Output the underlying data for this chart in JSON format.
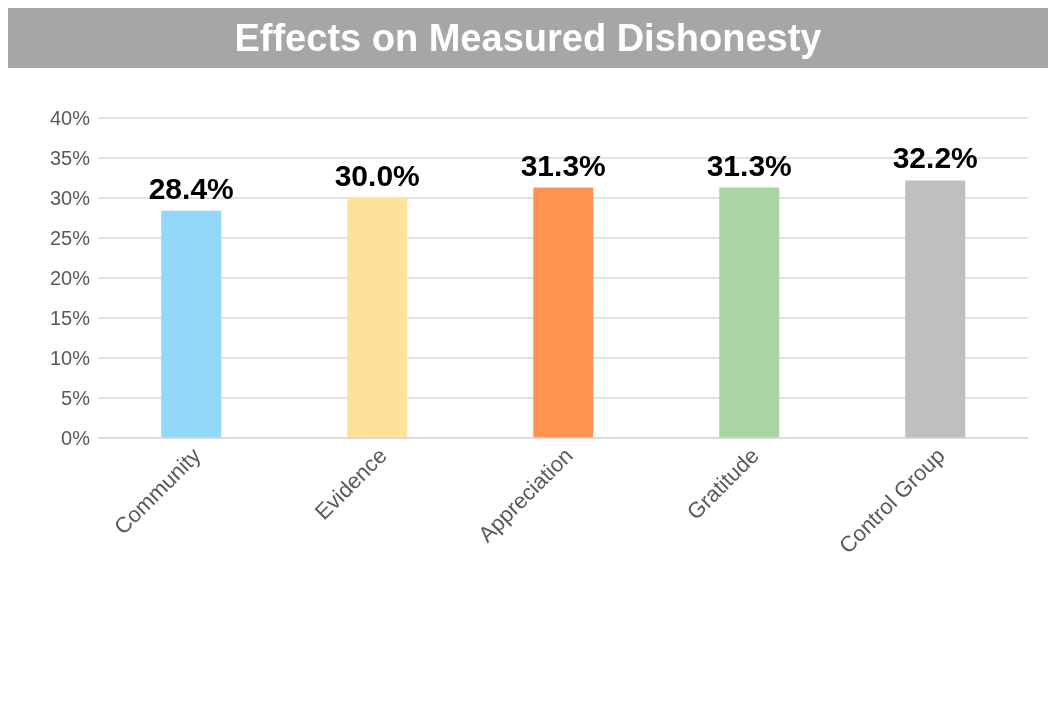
{
  "chart_data": {
    "type": "bar",
    "title": "Effects on Measured Dishonesty",
    "categories": [
      "Community",
      "Evidence",
      "Appreciation",
      "Gratitude",
      "Control Group"
    ],
    "values": [
      28.4,
      30.0,
      31.3,
      31.3,
      32.2
    ],
    "colors": [
      "#93d8f8",
      "#ffe29a",
      "#ff9350",
      "#a8d5a2",
      "#bfbfbf"
    ],
    "value_labels": [
      "28.4%",
      "30.0%",
      "31.3%",
      "31.3%",
      "32.2%"
    ],
    "ylim": [
      0,
      40
    ],
    "yticks": [
      {
        "value": 0,
        "label": "0%"
      },
      {
        "value": 5,
        "label": "5%"
      },
      {
        "value": 10,
        "label": "10%"
      },
      {
        "value": 15,
        "label": "15%"
      },
      {
        "value": 20,
        "label": "20%"
      },
      {
        "value": 25,
        "label": "25%"
      },
      {
        "value": 30,
        "label": "30%"
      },
      {
        "value": 35,
        "label": "35%"
      },
      {
        "value": 40,
        "label": "40%"
      }
    ],
    "grid": "y"
  }
}
